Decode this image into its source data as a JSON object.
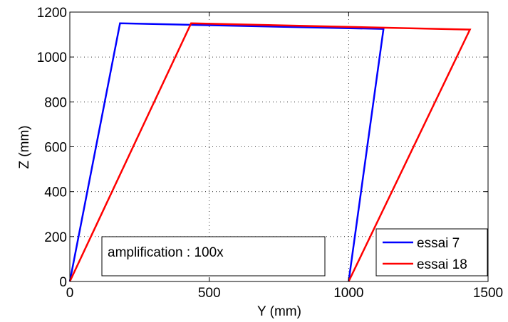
{
  "chart_data": {
    "type": "line",
    "xlabel": "Y (mm)",
    "ylabel": "Z (mm)",
    "xlim": [
      0,
      1500
    ],
    "ylim": [
      0,
      1200
    ],
    "xticks": [
      0,
      500,
      1000,
      1500
    ],
    "yticks": [
      0,
      200,
      400,
      600,
      800,
      1000,
      1200
    ],
    "grid": true,
    "legend_position": "bottom-right",
    "annotation": "amplification : 100x",
    "series": [
      {
        "name": "essai 7",
        "color": "#0000ff",
        "x": [
          0,
          180,
          1125,
          1000
        ],
        "y": [
          0,
          1150,
          1125,
          0
        ]
      },
      {
        "name": "essai 18",
        "color": "#ff0000",
        "x": [
          0,
          435,
          1435,
          1000
        ],
        "y": [
          0,
          1150,
          1122,
          0
        ]
      }
    ]
  }
}
